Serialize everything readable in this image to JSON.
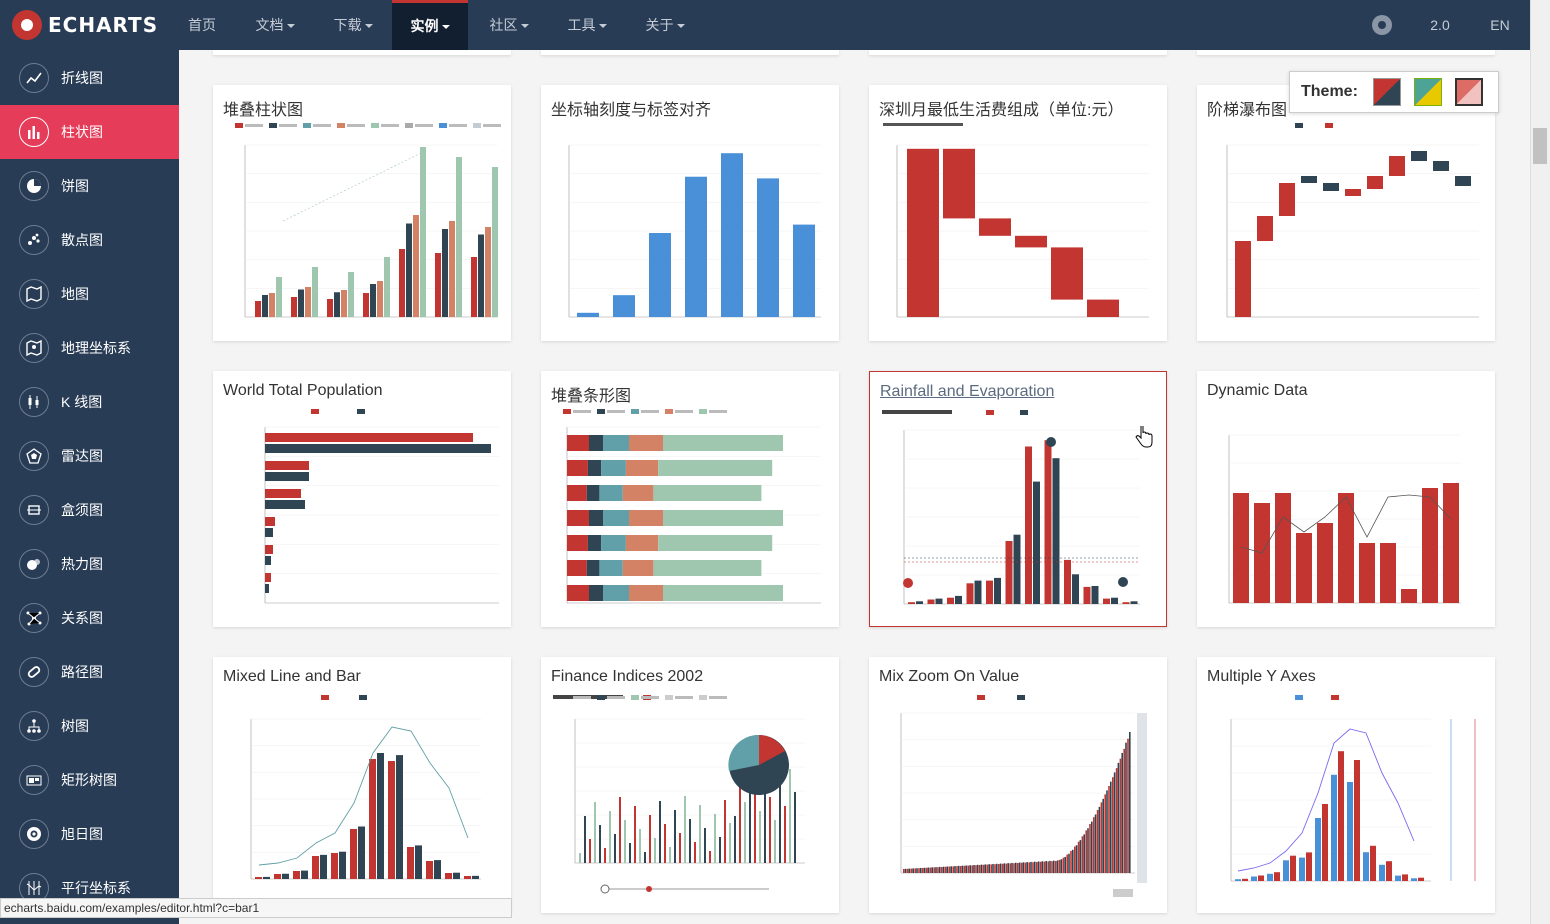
{
  "nav": {
    "logo_text": "ECHARTS",
    "items": [
      {
        "label": "首页",
        "dropdown": false
      },
      {
        "label": "文档",
        "dropdown": true
      },
      {
        "label": "下载",
        "dropdown": true
      },
      {
        "label": "实例",
        "dropdown": true,
        "active": true
      },
      {
        "label": "社区",
        "dropdown": true
      },
      {
        "label": "工具",
        "dropdown": true
      },
      {
        "label": "关于",
        "dropdown": true
      }
    ],
    "version": "2.0",
    "language": "EN"
  },
  "sidebar": {
    "items": [
      {
        "label": "折线图",
        "icon": "line-chart-icon"
      },
      {
        "label": "柱状图",
        "icon": "bar-chart-icon",
        "active": true
      },
      {
        "label": "饼图",
        "icon": "pie-chart-icon"
      },
      {
        "label": "散点图",
        "icon": "scatter-icon"
      },
      {
        "label": "地图",
        "icon": "map-icon"
      },
      {
        "label": "地理坐标系",
        "icon": "geo-icon"
      },
      {
        "label": "K 线图",
        "icon": "candlestick-icon"
      },
      {
        "label": "雷达图",
        "icon": "radar-icon"
      },
      {
        "label": "盒须图",
        "icon": "boxplot-icon"
      },
      {
        "label": "热力图",
        "icon": "heatmap-icon"
      },
      {
        "label": "关系图",
        "icon": "graph-icon"
      },
      {
        "label": "路径图",
        "icon": "lines-icon"
      },
      {
        "label": "树图",
        "icon": "tree-icon"
      },
      {
        "label": "矩形树图",
        "icon": "treemap-icon"
      },
      {
        "label": "旭日图",
        "icon": "sunburst-icon"
      },
      {
        "label": "平行坐标系",
        "icon": "parallel-icon"
      }
    ]
  },
  "theme": {
    "label": "Theme:",
    "colors": [
      "#c23531",
      "#2f4554",
      "#4ea397",
      "#e8c900"
    ]
  },
  "cards": [
    {
      "title": "堆叠柱状图",
      "thumb": "stacked-bar"
    },
    {
      "title": "坐标轴刻度与标签对齐",
      "thumb": "simple-bar"
    },
    {
      "title": "深圳月最低生活费组成（单位:元）",
      "thumb": "waterfall"
    },
    {
      "title": "阶梯瀑布图",
      "thumb": "step-waterfall"
    },
    {
      "title": "World Total Population",
      "thumb": "population-bar"
    },
    {
      "title": "堆叠条形图",
      "thumb": "stacked-hbar"
    },
    {
      "title": "Rainfall and Evaporation",
      "thumb": "rainfall",
      "selected": true
    },
    {
      "title": "Dynamic Data",
      "thumb": "dynamic"
    },
    {
      "title": "Mixed Line and Bar",
      "thumb": "mixed"
    },
    {
      "title": "Finance Indices 2002",
      "thumb": "finance"
    },
    {
      "title": "Mix Zoom On Value",
      "thumb": "zoom"
    },
    {
      "title": "Multiple Y Axes",
      "thumb": "multi-y"
    }
  ],
  "status_url": "echarts.baidu.com/examples/editor.html?c=bar1"
}
